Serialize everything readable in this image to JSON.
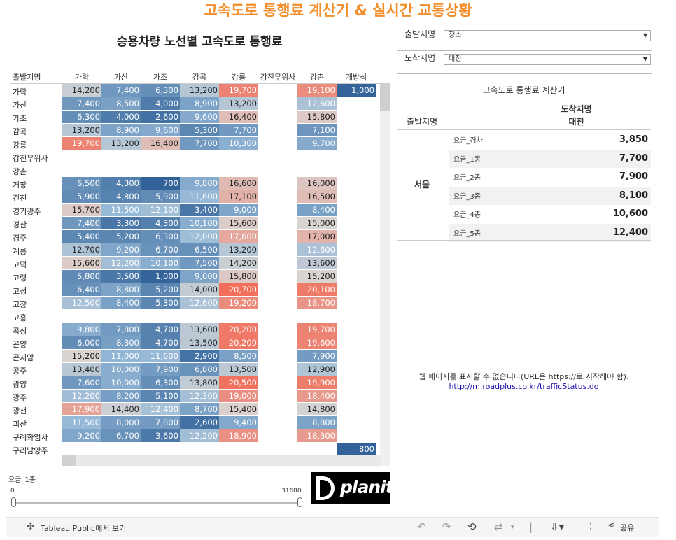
{
  "title": "고속도로 통행료 계산기 &  실시간 교통상황",
  "heatmap": {
    "title": "승용차량 노선별 고속도로 통행료",
    "row_header": "출발지명",
    "columns": [
      "가락",
      "가산",
      "가조",
      "감곡",
      "강릉",
      "강진무위사",
      "강촌",
      "개방식"
    ],
    "rows": [
      {
        "label": "가락",
        "values": [
          "14,200",
          "7,400",
          "6,300",
          "13,200",
          "19,700",
          "",
          "19,100",
          "1,000"
        ]
      },
      {
        "label": "가산",
        "values": [
          "7,400",
          "8,500",
          "4,000",
          "8,900",
          "13,200",
          "",
          "12,600",
          ""
        ]
      },
      {
        "label": "가조",
        "values": [
          "6,300",
          "4,000",
          "2,600",
          "9,600",
          "16,400",
          "",
          "15,800",
          ""
        ]
      },
      {
        "label": "감곡",
        "values": [
          "13,200",
          "8,900",
          "9,600",
          "5,300",
          "7,700",
          "",
          "7,100",
          ""
        ]
      },
      {
        "label": "강릉",
        "values": [
          "19,700",
          "13,200",
          "16,400",
          "7,700",
          "10,300",
          "",
          "9,700",
          ""
        ]
      },
      {
        "label": "강진무위사",
        "values": [
          "",
          "",
          "",
          "",
          "",
          "",
          "",
          ""
        ]
      },
      {
        "label": "강촌",
        "values": [
          "",
          "",
          "",
          "",
          "",
          "",
          "",
          ""
        ]
      },
      {
        "label": "거창",
        "values": [
          "6,500",
          "4,300",
          "700",
          "9,800",
          "16,600",
          "",
          "16,000",
          ""
        ]
      },
      {
        "label": "건천",
        "values": [
          "5,900",
          "4,800",
          "5,900",
          "11,600",
          "17,100",
          "",
          "16,500",
          ""
        ]
      },
      {
        "label": "경기광주",
        "values": [
          "15,700",
          "11,500",
          "12,100",
          "3,400",
          "9,000",
          "",
          "8,400",
          ""
        ]
      },
      {
        "label": "경산",
        "values": [
          "7,400",
          "3,300",
          "4,300",
          "10,100",
          "15,600",
          "",
          "15,000",
          ""
        ]
      },
      {
        "label": "경주",
        "values": [
          "5,400",
          "5,200",
          "6,300",
          "12,000",
          "17,600",
          "",
          "17,000",
          ""
        ]
      },
      {
        "label": "계룡",
        "values": [
          "12,700",
          "9,200",
          "6,700",
          "6,500",
          "13,200",
          "",
          "12,600",
          ""
        ]
      },
      {
        "label": "고덕",
        "values": [
          "15,600",
          "12,200",
          "10,100",
          "7,500",
          "14,200",
          "",
          "13,600",
          ""
        ]
      },
      {
        "label": "고령",
        "values": [
          "5,800",
          "3,500",
          "1,000",
          "9,000",
          "15,800",
          "",
          "15,200",
          ""
        ]
      },
      {
        "label": "고성",
        "values": [
          "6,400",
          "8,800",
          "5,200",
          "14,000",
          "20,700",
          "",
          "20,100",
          ""
        ]
      },
      {
        "label": "고창",
        "values": [
          "12,500",
          "8,400",
          "5,300",
          "12,600",
          "19,200",
          "",
          "18,700",
          ""
        ]
      },
      {
        "label": "고흥",
        "values": [
          "",
          "",
          "",
          "",
          "",
          "",
          "",
          ""
        ]
      },
      {
        "label": "곡성",
        "values": [
          "9,800",
          "7,800",
          "4,700",
          "13,600",
          "20,200",
          "",
          "19,700",
          ""
        ]
      },
      {
        "label": "곤양",
        "values": [
          "6,000",
          "8,300",
          "4,700",
          "13,500",
          "20,200",
          "",
          "19,600",
          ""
        ]
      },
      {
        "label": "곤지암",
        "values": [
          "15,200",
          "11,000",
          "11,600",
          "2,900",
          "8,500",
          "",
          "7,900",
          ""
        ]
      },
      {
        "label": "공주",
        "values": [
          "13,400",
          "10,000",
          "7,900",
          "6,800",
          "13,500",
          "",
          "12,900",
          ""
        ]
      },
      {
        "label": "광양",
        "values": [
          "7,600",
          "10,000",
          "6,300",
          "13,800",
          "20,500",
          "",
          "19,900",
          ""
        ]
      },
      {
        "label": "광주",
        "values": [
          "12,200",
          "8,200",
          "5,100",
          "12,300",
          "19,000",
          "",
          "18,400",
          ""
        ]
      },
      {
        "label": "광천",
        "values": [
          "17,900",
          "14,400",
          "12,400",
          "8,700",
          "15,400",
          "",
          "14,800",
          ""
        ]
      },
      {
        "label": "괴산",
        "values": [
          "11,500",
          "8,000",
          "7,800",
          "2,600",
          "9,400",
          "",
          "8,800",
          ""
        ]
      },
      {
        "label": "구례화엄사",
        "values": [
          "9,200",
          "6,700",
          "3,600",
          "12,200",
          "18,900",
          "",
          "18,300",
          ""
        ]
      },
      {
        "label": "구리남양주",
        "values": [
          "",
          "",
          "",
          "",
          "",
          "",
          "",
          "800"
        ]
      }
    ]
  },
  "filters": {
    "origin": {
      "label": "출발지명",
      "value": "장소"
    },
    "dest": {
      "label": "도착지명",
      "value": "대전"
    }
  },
  "calculator": {
    "title": "고속도로 통행료 계산기",
    "dest_header": "도착지명",
    "dest_value": "대전",
    "origin_header": "출발지명",
    "origin_value": "서울",
    "rows": [
      {
        "k": "요금_경차",
        "v": "3,850"
      },
      {
        "k": "요금_1종",
        "v": "7,700"
      },
      {
        "k": "요금_2종",
        "v": "7,900"
      },
      {
        "k": "요금_3종",
        "v": "8,100"
      },
      {
        "k": "요금_4종",
        "v": "10,600"
      },
      {
        "k": "요금_5종",
        "v": "12,400"
      }
    ]
  },
  "web_message": {
    "text": "웹 페이지를 표시할 수 없습니다(URL은 https://로 시작해야 함).",
    "url": "http://m.roadplus.co.kr/trafficStatus.do"
  },
  "slider": {
    "label": "요금_1종",
    "min": "0",
    "max": "31600"
  },
  "logo_text": "planit",
  "toolbar": {
    "tableau": "Tableau Public에서 보기",
    "share": "공유"
  },
  "colors": {
    "title": "#f28e2b",
    "low": "#2b5c94",
    "mid": "#d9d5d2",
    "high": "#f26a55"
  }
}
